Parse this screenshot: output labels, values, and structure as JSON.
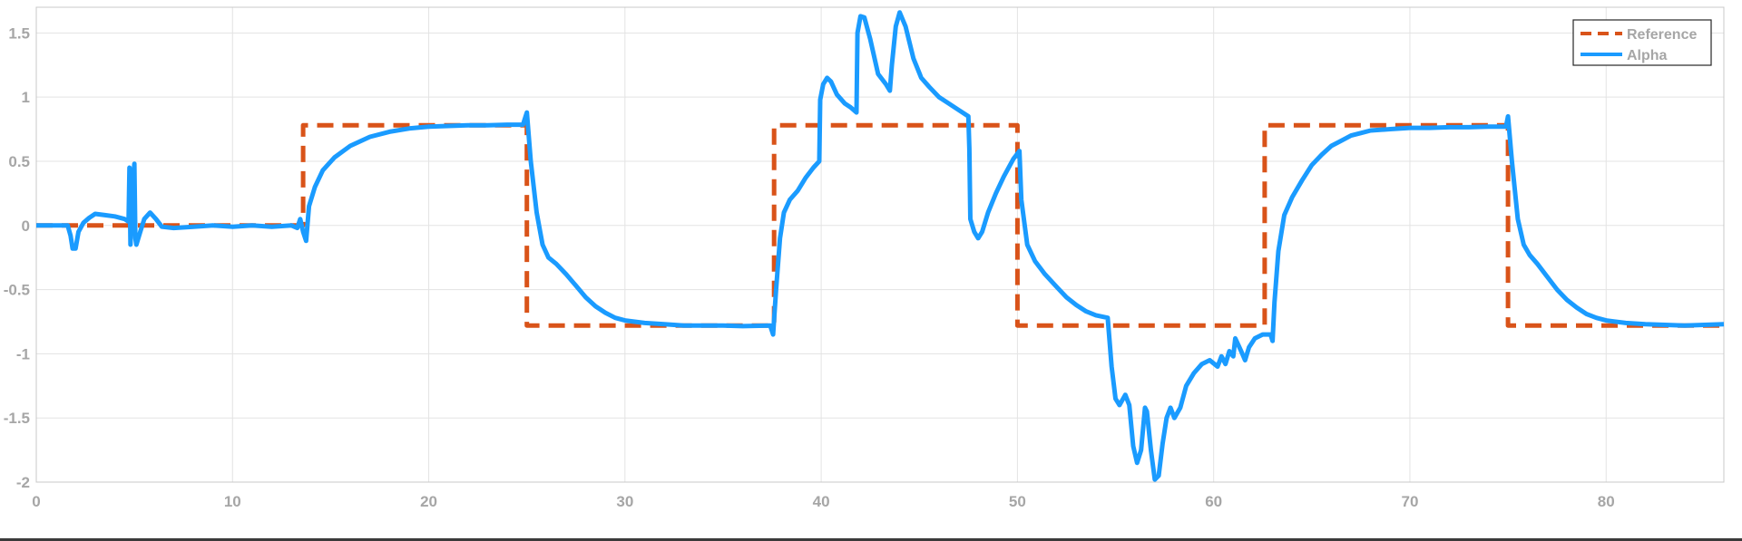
{
  "chart_data": {
    "type": "line",
    "title": "",
    "xlabel": "",
    "ylabel": "",
    "xlim": [
      0,
      86
    ],
    "ylim": [
      -2,
      1.7
    ],
    "x_ticks": [
      0,
      10,
      20,
      30,
      40,
      50,
      60,
      70,
      80
    ],
    "y_ticks": [
      1.5,
      1,
      0.5,
      0,
      -0.5,
      -1,
      -1.5,
      -2
    ],
    "x_tick_labels": [
      "0",
      "10",
      "20",
      "30",
      "40",
      "50",
      "60",
      "70",
      "80"
    ],
    "y_tick_labels": [
      "1.5",
      "1",
      "0.5",
      "0",
      "-0.5",
      "-1",
      "-1.5",
      "-2"
    ],
    "grid": true,
    "legend_position": "top-right",
    "series": [
      {
        "name": "Reference",
        "color": "#d95319",
        "style": "dashed",
        "points": [
          [
            0,
            0
          ],
          [
            13.6,
            0
          ],
          [
            13.6,
            0.78
          ],
          [
            25,
            0.78
          ],
          [
            25,
            -0.78
          ],
          [
            37.6,
            -0.78
          ],
          [
            37.6,
            0.78
          ],
          [
            50,
            0.78
          ],
          [
            50,
            -0.78
          ],
          [
            62.6,
            -0.78
          ],
          [
            62.6,
            0.78
          ],
          [
            75,
            0.78
          ],
          [
            75,
            -0.78
          ],
          [
            86,
            -0.78
          ]
        ]
      },
      {
        "name": "Alpha",
        "color": "#1a9bff",
        "style": "solid",
        "points": [
          [
            0,
            0
          ],
          [
            1.6,
            0
          ],
          [
            1.75,
            -0.08
          ],
          [
            1.85,
            -0.18
          ],
          [
            2.0,
            -0.18
          ],
          [
            2.15,
            -0.05
          ],
          [
            2.4,
            0.02
          ],
          [
            2.7,
            0.06
          ],
          [
            3.0,
            0.09
          ],
          [
            3.5,
            0.08
          ],
          [
            4.0,
            0.07
          ],
          [
            4.5,
            0.05
          ],
          [
            4.7,
            0.03
          ],
          [
            4.75,
            0.45
          ],
          [
            4.8,
            -0.15
          ],
          [
            4.9,
            0.3
          ],
          [
            5.0,
            0.48
          ],
          [
            5.05,
            -0.1
          ],
          [
            5.1,
            -0.15
          ],
          [
            5.3,
            -0.05
          ],
          [
            5.5,
            0.05
          ],
          [
            5.8,
            0.1
          ],
          [
            6.1,
            0.05
          ],
          [
            6.4,
            -0.01
          ],
          [
            7,
            -0.02
          ],
          [
            8,
            -0.01
          ],
          [
            9,
            0
          ],
          [
            10,
            -0.01
          ],
          [
            11,
            0
          ],
          [
            12,
            -0.01
          ],
          [
            13,
            0
          ],
          [
            13.3,
            -0.02
          ],
          [
            13.45,
            0.05
          ],
          [
            13.6,
            -0.05
          ],
          [
            13.75,
            -0.12
          ],
          [
            13.9,
            0.15
          ],
          [
            14.2,
            0.3
          ],
          [
            14.6,
            0.43
          ],
          [
            15.2,
            0.53
          ],
          [
            16,
            0.62
          ],
          [
            17,
            0.69
          ],
          [
            18,
            0.73
          ],
          [
            19,
            0.755
          ],
          [
            20,
            0.77
          ],
          [
            21,
            0.775
          ],
          [
            22,
            0.78
          ],
          [
            23,
            0.78
          ],
          [
            24,
            0.785
          ],
          [
            24.8,
            0.785
          ],
          [
            25.0,
            0.88
          ],
          [
            25.2,
            0.5
          ],
          [
            25.5,
            0.1
          ],
          [
            25.8,
            -0.15
          ],
          [
            26.1,
            -0.25
          ],
          [
            26.5,
            -0.3
          ],
          [
            27,
            -0.38
          ],
          [
            27.5,
            -0.47
          ],
          [
            28,
            -0.56
          ],
          [
            28.5,
            -0.63
          ],
          [
            29,
            -0.68
          ],
          [
            29.5,
            -0.72
          ],
          [
            30,
            -0.74
          ],
          [
            31,
            -0.76
          ],
          [
            32,
            -0.77
          ],
          [
            33,
            -0.78
          ],
          [
            34,
            -0.78
          ],
          [
            35,
            -0.78
          ],
          [
            36,
            -0.785
          ],
          [
            37.4,
            -0.78
          ],
          [
            37.55,
            -0.85
          ],
          [
            37.7,
            -0.5
          ],
          [
            37.9,
            -0.1
          ],
          [
            38.1,
            0.1
          ],
          [
            38.4,
            0.2
          ],
          [
            38.8,
            0.27
          ],
          [
            39.2,
            0.37
          ],
          [
            39.6,
            0.45
          ],
          [
            39.9,
            0.5
          ],
          [
            39.95,
            0.98
          ],
          [
            40.1,
            1.1
          ],
          [
            40.3,
            1.15
          ],
          [
            40.5,
            1.12
          ],
          [
            40.8,
            1.02
          ],
          [
            41.2,
            0.95
          ],
          [
            41.5,
            0.92
          ],
          [
            41.8,
            0.88
          ],
          [
            41.85,
            1.5
          ],
          [
            42.0,
            1.63
          ],
          [
            42.2,
            1.62
          ],
          [
            42.5,
            1.45
          ],
          [
            42.9,
            1.18
          ],
          [
            43.3,
            1.1
          ],
          [
            43.5,
            1.05
          ],
          [
            43.6,
            1.25
          ],
          [
            43.8,
            1.55
          ],
          [
            44.0,
            1.66
          ],
          [
            44.3,
            1.55
          ],
          [
            44.7,
            1.3
          ],
          [
            45.1,
            1.15
          ],
          [
            45.5,
            1.08
          ],
          [
            46,
            1.0
          ],
          [
            46.5,
            0.95
          ],
          [
            47,
            0.9
          ],
          [
            47.5,
            0.85
          ],
          [
            47.55,
            0.6
          ],
          [
            47.6,
            0.05
          ],
          [
            47.8,
            -0.05
          ],
          [
            48.0,
            -0.1
          ],
          [
            48.2,
            -0.05
          ],
          [
            48.5,
            0.1
          ],
          [
            48.9,
            0.25
          ],
          [
            49.3,
            0.38
          ],
          [
            49.8,
            0.52
          ],
          [
            50.1,
            0.58
          ],
          [
            50.2,
            0.2
          ],
          [
            50.5,
            -0.15
          ],
          [
            50.9,
            -0.28
          ],
          [
            51.4,
            -0.38
          ],
          [
            52,
            -0.48
          ],
          [
            52.5,
            -0.56
          ],
          [
            53,
            -0.62
          ],
          [
            53.5,
            -0.67
          ],
          [
            54,
            -0.7
          ],
          [
            54.6,
            -0.72
          ],
          [
            54.8,
            -1.1
          ],
          [
            55,
            -1.35
          ],
          [
            55.2,
            -1.4
          ],
          [
            55.5,
            -1.32
          ],
          [
            55.7,
            -1.4
          ],
          [
            55.9,
            -1.72
          ],
          [
            56.1,
            -1.85
          ],
          [
            56.3,
            -1.75
          ],
          [
            56.5,
            -1.42
          ],
          [
            56.6,
            -1.45
          ],
          [
            56.8,
            -1.75
          ],
          [
            57,
            -1.98
          ],
          [
            57.2,
            -1.95
          ],
          [
            57.4,
            -1.7
          ],
          [
            57.6,
            -1.5
          ],
          [
            57.8,
            -1.42
          ],
          [
            58,
            -1.5
          ],
          [
            58.3,
            -1.42
          ],
          [
            58.6,
            -1.25
          ],
          [
            59,
            -1.15
          ],
          [
            59.4,
            -1.08
          ],
          [
            59.8,
            -1.05
          ],
          [
            60.2,
            -1.1
          ],
          [
            60.4,
            -1.02
          ],
          [
            60.6,
            -1.08
          ],
          [
            60.8,
            -0.98
          ],
          [
            61,
            -1.02
          ],
          [
            61.1,
            -0.88
          ],
          [
            61.4,
            -0.98
          ],
          [
            61.6,
            -1.05
          ],
          [
            61.8,
            -0.95
          ],
          [
            62.1,
            -0.88
          ],
          [
            62.5,
            -0.85
          ],
          [
            62.9,
            -0.85
          ],
          [
            63.0,
            -0.9
          ],
          [
            63.1,
            -0.6
          ],
          [
            63.3,
            -0.2
          ],
          [
            63.6,
            0.08
          ],
          [
            64,
            0.22
          ],
          [
            64.5,
            0.35
          ],
          [
            65,
            0.47
          ],
          [
            65.5,
            0.55
          ],
          [
            66,
            0.62
          ],
          [
            66.5,
            0.66
          ],
          [
            67,
            0.7
          ],
          [
            67.5,
            0.72
          ],
          [
            68,
            0.74
          ],
          [
            69,
            0.75
          ],
          [
            70,
            0.76
          ],
          [
            71,
            0.76
          ],
          [
            72,
            0.765
          ],
          [
            73,
            0.765
          ],
          [
            74,
            0.77
          ],
          [
            74.9,
            0.77
          ],
          [
            75.0,
            0.85
          ],
          [
            75.2,
            0.5
          ],
          [
            75.5,
            0.05
          ],
          [
            75.8,
            -0.15
          ],
          [
            76.1,
            -0.23
          ],
          [
            76.5,
            -0.3
          ],
          [
            77,
            -0.4
          ],
          [
            77.5,
            -0.5
          ],
          [
            78,
            -0.58
          ],
          [
            78.5,
            -0.64
          ],
          [
            79,
            -0.69
          ],
          [
            79.5,
            -0.72
          ],
          [
            80,
            -0.74
          ],
          [
            81,
            -0.76
          ],
          [
            82,
            -0.77
          ],
          [
            83,
            -0.775
          ],
          [
            84,
            -0.78
          ],
          [
            85,
            -0.775
          ],
          [
            86,
            -0.77
          ]
        ]
      }
    ]
  }
}
